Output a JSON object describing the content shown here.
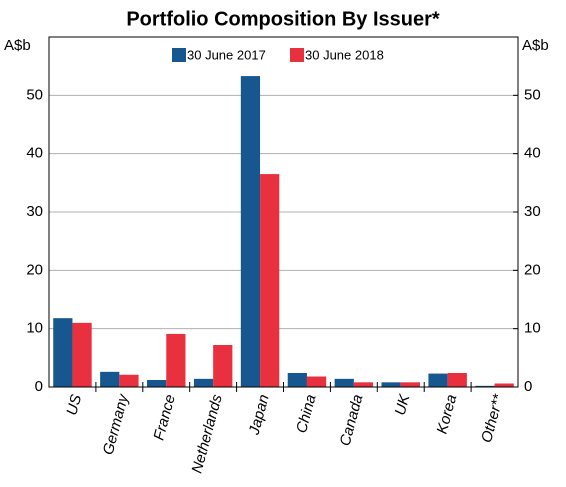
{
  "chart_data": {
    "type": "bar",
    "title": "Portfolio Composition By Issuer*",
    "y_label": "A$b",
    "y2_label": "A$b",
    "categories": [
      "US",
      "Germany",
      "France",
      "Netherlands",
      "Japan",
      "China",
      "Canada",
      "UK",
      "Korea",
      "Other**"
    ],
    "series": [
      {
        "name": "30 June 2017",
        "color": "#17578f",
        "values": [
          11.8,
          2.6,
          1.2,
          1.4,
          53.3,
          2.4,
          1.4,
          0.8,
          2.3,
          0.2
        ]
      },
      {
        "name": "30 June 2018",
        "color": "#e8303f",
        "values": [
          11.0,
          2.1,
          9.1,
          7.2,
          36.5,
          1.8,
          0.8,
          0.8,
          2.4,
          0.6
        ]
      }
    ],
    "ylim": [
      0,
      60
    ],
    "yticks": [
      0,
      10,
      20,
      30,
      40,
      50
    ],
    "y2lim": [
      0,
      60
    ],
    "y2ticks": [
      0,
      10,
      20,
      30,
      40,
      50
    ],
    "grid": true,
    "legend": "top"
  }
}
